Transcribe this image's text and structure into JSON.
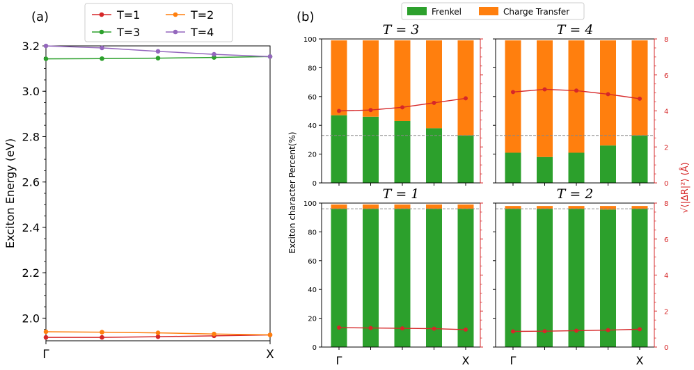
{
  "panel_a_label": "(a)",
  "panel_b_label": "(b)",
  "chart_data": [
    {
      "type": "line",
      "panel": "(a)",
      "ylabel": "Exciton Energy (eV)",
      "xlabel": "",
      "x_ticks": [
        "Γ",
        "X"
      ],
      "ylim": [
        1.9,
        3.2
      ],
      "y_ticks": [
        "2.0",
        "2.2",
        "2.4",
        "2.6",
        "2.8",
        "3.0",
        "3.2"
      ],
      "x": [
        0,
        0.25,
        0.5,
        0.75,
        1.0
      ],
      "legend_position": "top",
      "series": [
        {
          "name": "T=1",
          "color": "#d62728",
          "values": [
            1.915,
            1.915,
            1.918,
            1.922,
            1.926
          ]
        },
        {
          "name": "T=2",
          "color": "#ff7f0e",
          "values": [
            1.94,
            1.938,
            1.935,
            1.93,
            1.926
          ]
        },
        {
          "name": "T=3",
          "color": "#2ca02c",
          "values": [
            3.143,
            3.144,
            3.146,
            3.149,
            3.153
          ]
        },
        {
          "name": "T=4",
          "color": "#9467bd",
          "values": [
            3.2,
            3.191,
            3.176,
            3.163,
            3.153
          ]
        }
      ]
    },
    {
      "type": "bar",
      "panel": "(b)",
      "legend": [
        {
          "name": "Frenkel",
          "color": "#2ca02c"
        },
        {
          "name": "Charge Transfer",
          "color": "#ff7f0e"
        }
      ],
      "legend_position": "top",
      "ylabel": "Exciton character Percent(%)",
      "y2label": "√⟨|ΔR|²⟩ (Å)",
      "y2_color": "#d62728",
      "ylim": [
        0,
        100
      ],
      "y2lim": [
        0,
        8
      ],
      "y_ticks": [
        "0",
        "20",
        "40",
        "60",
        "80",
        "100"
      ],
      "y2_ticks": [
        "0",
        "2",
        "4",
        "6",
        "8"
      ],
      "x_ticks": [
        "Γ",
        "X"
      ],
      "subplots": [
        {
          "title": "T = 3",
          "frenkel": [
            47,
            46,
            43,
            38,
            33
          ],
          "charge_transfer": [
            52,
            53,
            56,
            61,
            66
          ],
          "reference_line": 33,
          "radius": [
            4.0,
            4.05,
            4.2,
            4.45,
            4.7
          ]
        },
        {
          "title": "T = 4",
          "frenkel": [
            21,
            18,
            21,
            26,
            33
          ],
          "charge_transfer": [
            78,
            81,
            78,
            73,
            66
          ],
          "reference_line": 33,
          "radius": [
            5.05,
            5.2,
            5.13,
            4.93,
            4.68
          ]
        },
        {
          "title": "T = 1",
          "frenkel": [
            96,
            96,
            96,
            96,
            96
          ],
          "charge_transfer": [
            3,
            3,
            3,
            3,
            3
          ],
          "reference_line": 96,
          "radius": [
            1.08,
            1.06,
            1.04,
            1.02,
            0.97
          ]
        },
        {
          "title": "T = 2",
          "frenkel": [
            96,
            96,
            96,
            95.5,
            96
          ],
          "charge_transfer": [
            2,
            2,
            2,
            2.5,
            2
          ],
          "reference_line": 96,
          "radius": [
            0.87,
            0.88,
            0.91,
            0.94,
            0.99
          ]
        }
      ]
    }
  ]
}
